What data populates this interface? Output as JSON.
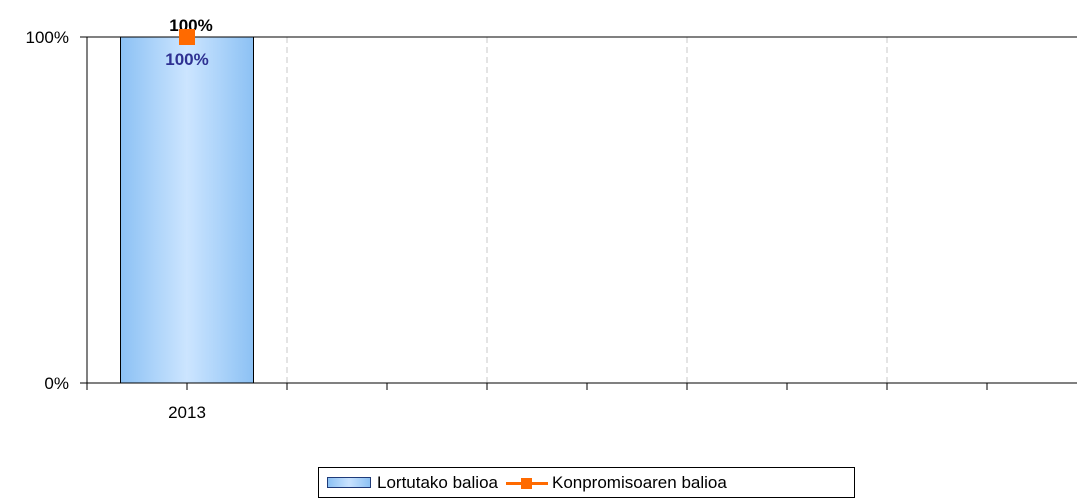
{
  "chart_data": {
    "type": "bar",
    "categories": [
      "2013",
      "",
      "",
      "",
      ""
    ],
    "y_ticks": [
      "0%",
      "100%"
    ],
    "ylim": [
      0,
      100
    ],
    "grid": "vertical dashed",
    "legend_placement": "bottom",
    "series": [
      {
        "name": "Lortutako balioa",
        "type": "bar",
        "values": [
          100,
          null,
          null,
          null,
          null
        ],
        "labels": [
          "100%",
          "",
          "",
          "",
          ""
        ],
        "color": "#9ccbf7",
        "label_color": "#2e3192"
      },
      {
        "name": "Konpromisoaren balioa",
        "type": "line",
        "values": [
          100,
          null,
          null,
          null,
          null
        ],
        "labels": [
          "100%",
          "",
          "",
          "",
          ""
        ],
        "color": "#ff6a00",
        "label_color": "#000000"
      }
    ]
  }
}
